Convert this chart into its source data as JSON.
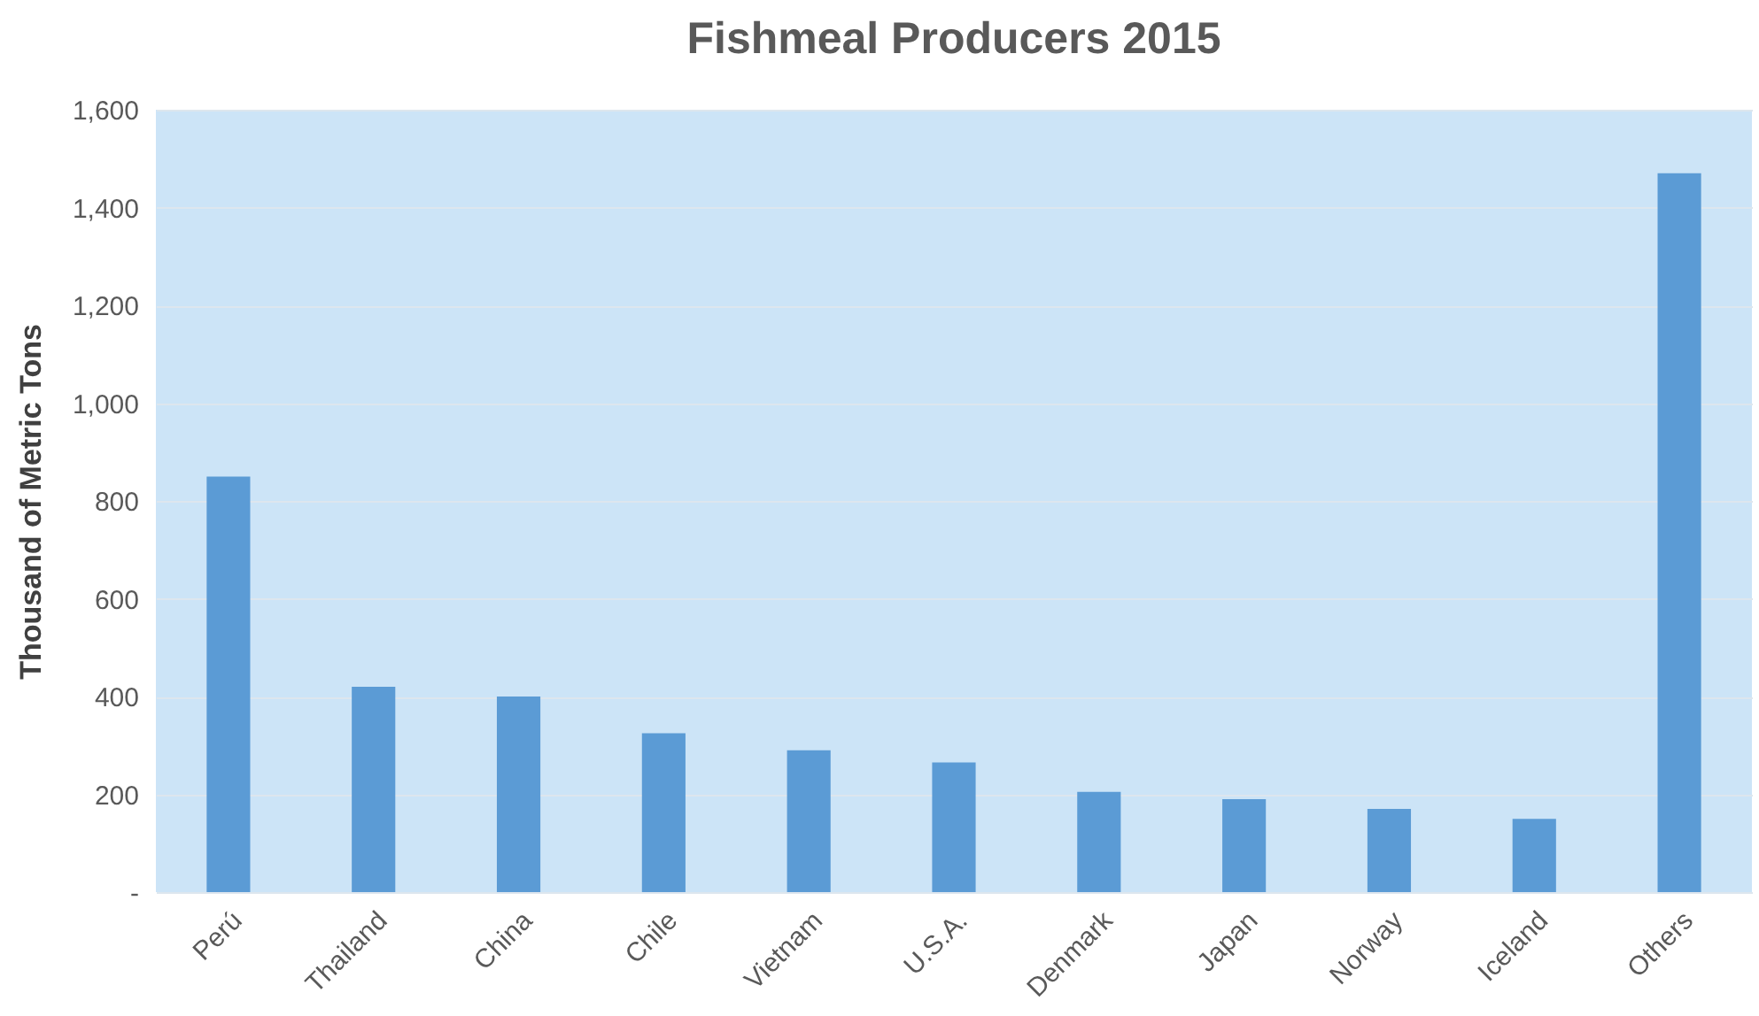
{
  "chart_data": {
    "type": "bar",
    "title": "Fishmeal Producers 2015",
    "ylabel": "Thousand  of Metric Tons",
    "categories": [
      "Perú",
      "Thailand",
      "China",
      "Chile",
      "Vietnam",
      "U.S.A.",
      "Denmark",
      "Japan",
      "Norway",
      "Iceland",
      "Others"
    ],
    "values": [
      850,
      420,
      400,
      325,
      290,
      265,
      205,
      190,
      170,
      150,
      1470
    ],
    "color": "#5b9bd5",
    "ylim": [
      0,
      1600
    ],
    "yticks": [
      {
        "value": 0,
        "label": "-"
      },
      {
        "value": 200,
        "label": "200"
      },
      {
        "value": 400,
        "label": "400"
      },
      {
        "value": 600,
        "label": "600"
      },
      {
        "value": 800,
        "label": "800"
      },
      {
        "value": 1000,
        "label": "1,000"
      },
      {
        "value": 1200,
        "label": "1,200"
      },
      {
        "value": 1400,
        "label": "1,400"
      },
      {
        "value": 1600,
        "label": "1,600"
      }
    ],
    "grid": "y"
  }
}
